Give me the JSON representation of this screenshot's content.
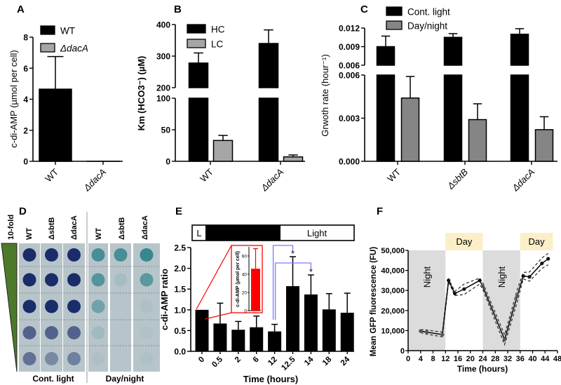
{
  "chart_data": [
    {
      "panel": "A",
      "type": "bar",
      "ylabel": "c-di-AMP (µmol per cell)",
      "categories": [
        "WT",
        "ΔdacA"
      ],
      "y_segments": [
        {
          "range": [
            0,
            8
          ],
          "ticks": [
            0,
            2,
            4,
            6,
            8
          ],
          "tick_labels": [
            "0",
            "2",
            "4",
            "6",
            "8"
          ]
        }
      ],
      "legend": {
        "placement": "top-left",
        "entries": [
          "WT",
          "ΔdacA"
        ]
      },
      "series": [
        {
          "name": "WT",
          "color": "#000000",
          "values": [
            4.65,
            null
          ],
          "errors": [
            6.75,
            null
          ]
        },
        {
          "name": "ΔdacA",
          "color": "#a6a6a6",
          "values": [
            null,
            0
          ],
          "errors": [
            null,
            null
          ]
        }
      ]
    },
    {
      "panel": "B",
      "type": "bar",
      "ylabel": "Km (HCO3⁻) (µM)",
      "categories": [
        "WT",
        "ΔdacA"
      ],
      "y_segments": [
        {
          "range": [
            0,
            100
          ],
          "ticks": [
            0,
            50,
            100
          ],
          "tick_labels": [
            "0",
            "50",
            "100"
          ]
        },
        {
          "range": [
            200,
            400
          ],
          "ticks": [
            200,
            300,
            400
          ],
          "tick_labels": [
            "200",
            "300",
            "400"
          ]
        }
      ],
      "legend": {
        "placement": "top-left",
        "entries": [
          "HC",
          "LC"
        ]
      },
      "series": [
        {
          "name": "HC",
          "color": "#000000",
          "values": [
            278,
            340
          ],
          "errors": [
            310,
            383
          ]
        },
        {
          "name": "LC",
          "color": "#a6a6a6",
          "values": [
            33,
            7
          ],
          "errors": [
            41,
            10
          ]
        }
      ]
    },
    {
      "panel": "C",
      "type": "bar",
      "ylabel": "Grwoth rate (hour⁻¹)",
      "categories": [
        "WT",
        "ΔsbtB",
        "ΔdacA"
      ],
      "y_segments": [
        {
          "range": [
            0,
            0.006
          ],
          "ticks": [
            0,
            0.003,
            0.006
          ],
          "tick_labels": [
            "0.000",
            "0.003",
            "0.006"
          ]
        },
        {
          "range": [
            0.006,
            0.012
          ],
          "ticks": [
            0.006,
            0.009,
            0.012
          ],
          "tick_labels": [
            "0.006",
            "0.009",
            "0.012"
          ]
        }
      ],
      "legend": {
        "placement": "top",
        "entries": [
          "Cont. light",
          "Day/night"
        ]
      },
      "series": [
        {
          "name": "Cont. light",
          "color": "#000000",
          "values": [
            0.009,
            0.0105,
            0.011
          ],
          "errors": [
            0.0107,
            0.0111,
            0.0119
          ]
        },
        {
          "name": "Day/night",
          "color": "#858585",
          "values": [
            0.0044,
            0.0029,
            0.0022
          ],
          "errors": [
            0.0059,
            0.004,
            0.0031
          ]
        }
      ]
    },
    {
      "panel": "D",
      "type": "table",
      "dilution_label": "10-fold",
      "columns": [
        "WT",
        "ΔsbtB",
        "ΔdacA",
        "WT",
        "ΔsbtB",
        "ΔdacA"
      ],
      "groups": [
        "Cont. light",
        "Day/night"
      ],
      "growth": [
        [
          1,
          1,
          1,
          0.65,
          0.55
        ],
        [
          1,
          1,
          1,
          0.65,
          0.4
        ],
        [
          1,
          1,
          1,
          0.65,
          0.45
        ],
        [
          0.8,
          0.7,
          0.5,
          0.15,
          0.06
        ],
        [
          0.8,
          0.12,
          0,
          0,
          0
        ],
        [
          0.9,
          0.65,
          0.06,
          0.04,
          0.05
        ]
      ],
      "colors": {
        "cont": "#1b2c6a",
        "day": "#2a7f88",
        "plate": "#b7c5ca",
        "wedge": "#4d7a2a"
      }
    },
    {
      "panel": "E",
      "type": "bar",
      "xlabel": "Time (hours)",
      "ylabel": "c-di-AMP ratio",
      "phases": [
        {
          "label": "L"
        },
        {
          "label": "Dark"
        },
        {
          "label": "Light"
        }
      ],
      "categories": [
        "0",
        "0.5",
        "2",
        "6",
        "12",
        "12.5",
        "14",
        "18",
        "24"
      ],
      "values": [
        1.0,
        0.67,
        0.52,
        0.58,
        0.48,
        1.57,
        1.37,
        1.01,
        0.93
      ],
      "errors": [
        null,
        1.16,
        0.72,
        0.85,
        0.65,
        2.28,
        1.84,
        1.39,
        1.4
      ],
      "ylim": [
        0,
        2.5
      ],
      "yticks": [
        "0.0",
        "0.5",
        "1.0",
        "1.5",
        "2.0",
        "2.5"
      ],
      "significance": [
        {
          "from": "12",
          "to": "12.5",
          "mark": "*"
        },
        {
          "from": "12",
          "to": "14",
          "mark": "*"
        }
      ],
      "inset": {
        "ylabel": "c-di-AMP (µmol per cell)",
        "value": 46,
        "error": 68,
        "ylim": [
          0,
          70
        ],
        "yticks": [
          "0",
          "20",
          "40",
          "60"
        ],
        "color": "#ff0000"
      },
      "bracket_color": "#7b7bff"
    },
    {
      "panel": "F",
      "type": "line",
      "xlabel": "Time (hours)",
      "ylabel": "Mean GFP fluorescence (FU)",
      "xlim": [
        0,
        48
      ],
      "ylim": [
        0,
        50000
      ],
      "xticks": [
        "0",
        "4",
        "8",
        "12",
        "16",
        "20",
        "24",
        "28",
        "32",
        "36",
        "40",
        "44",
        "48"
      ],
      "yticks": [
        "0",
        "10,000",
        "20,000",
        "30,000",
        "40,000",
        "50,000"
      ],
      "periods": [
        {
          "label": "Night",
          "type": "night",
          "range": [
            0,
            12
          ]
        },
        {
          "label": "Day",
          "type": "day",
          "range": [
            12,
            24
          ]
        },
        {
          "label": "Night",
          "type": "night",
          "range": [
            24,
            36
          ]
        },
        {
          "label": "Day",
          "type": "day",
          "range": [
            36,
            46.5
          ]
        }
      ],
      "x": [
        4,
        6,
        11,
        13,
        15,
        18,
        23,
        24,
        31,
        35,
        37,
        39,
        43,
        45
      ],
      "mean": [
        9800,
        9200,
        8000,
        35000,
        28500,
        30700,
        35000,
        32000,
        5500,
        27000,
        37200,
        36800,
        43500,
        45800
      ],
      "upper": [
        10500,
        10300,
        9200,
        35600,
        29600,
        33200,
        36200,
        33800,
        7800,
        30000,
        39000,
        39200,
        46200,
        48500
      ],
      "lower": [
        9000,
        8200,
        6900,
        34400,
        27400,
        28000,
        33200,
        30500,
        3000,
        24000,
        35800,
        34600,
        41000,
        42800
      ],
      "colors": {
        "night": "#dcdcdc",
        "day": "#fbefc8",
        "line": "#111111"
      }
    }
  ],
  "panel_labels": [
    "A",
    "B",
    "C",
    "D",
    "E",
    "F"
  ]
}
